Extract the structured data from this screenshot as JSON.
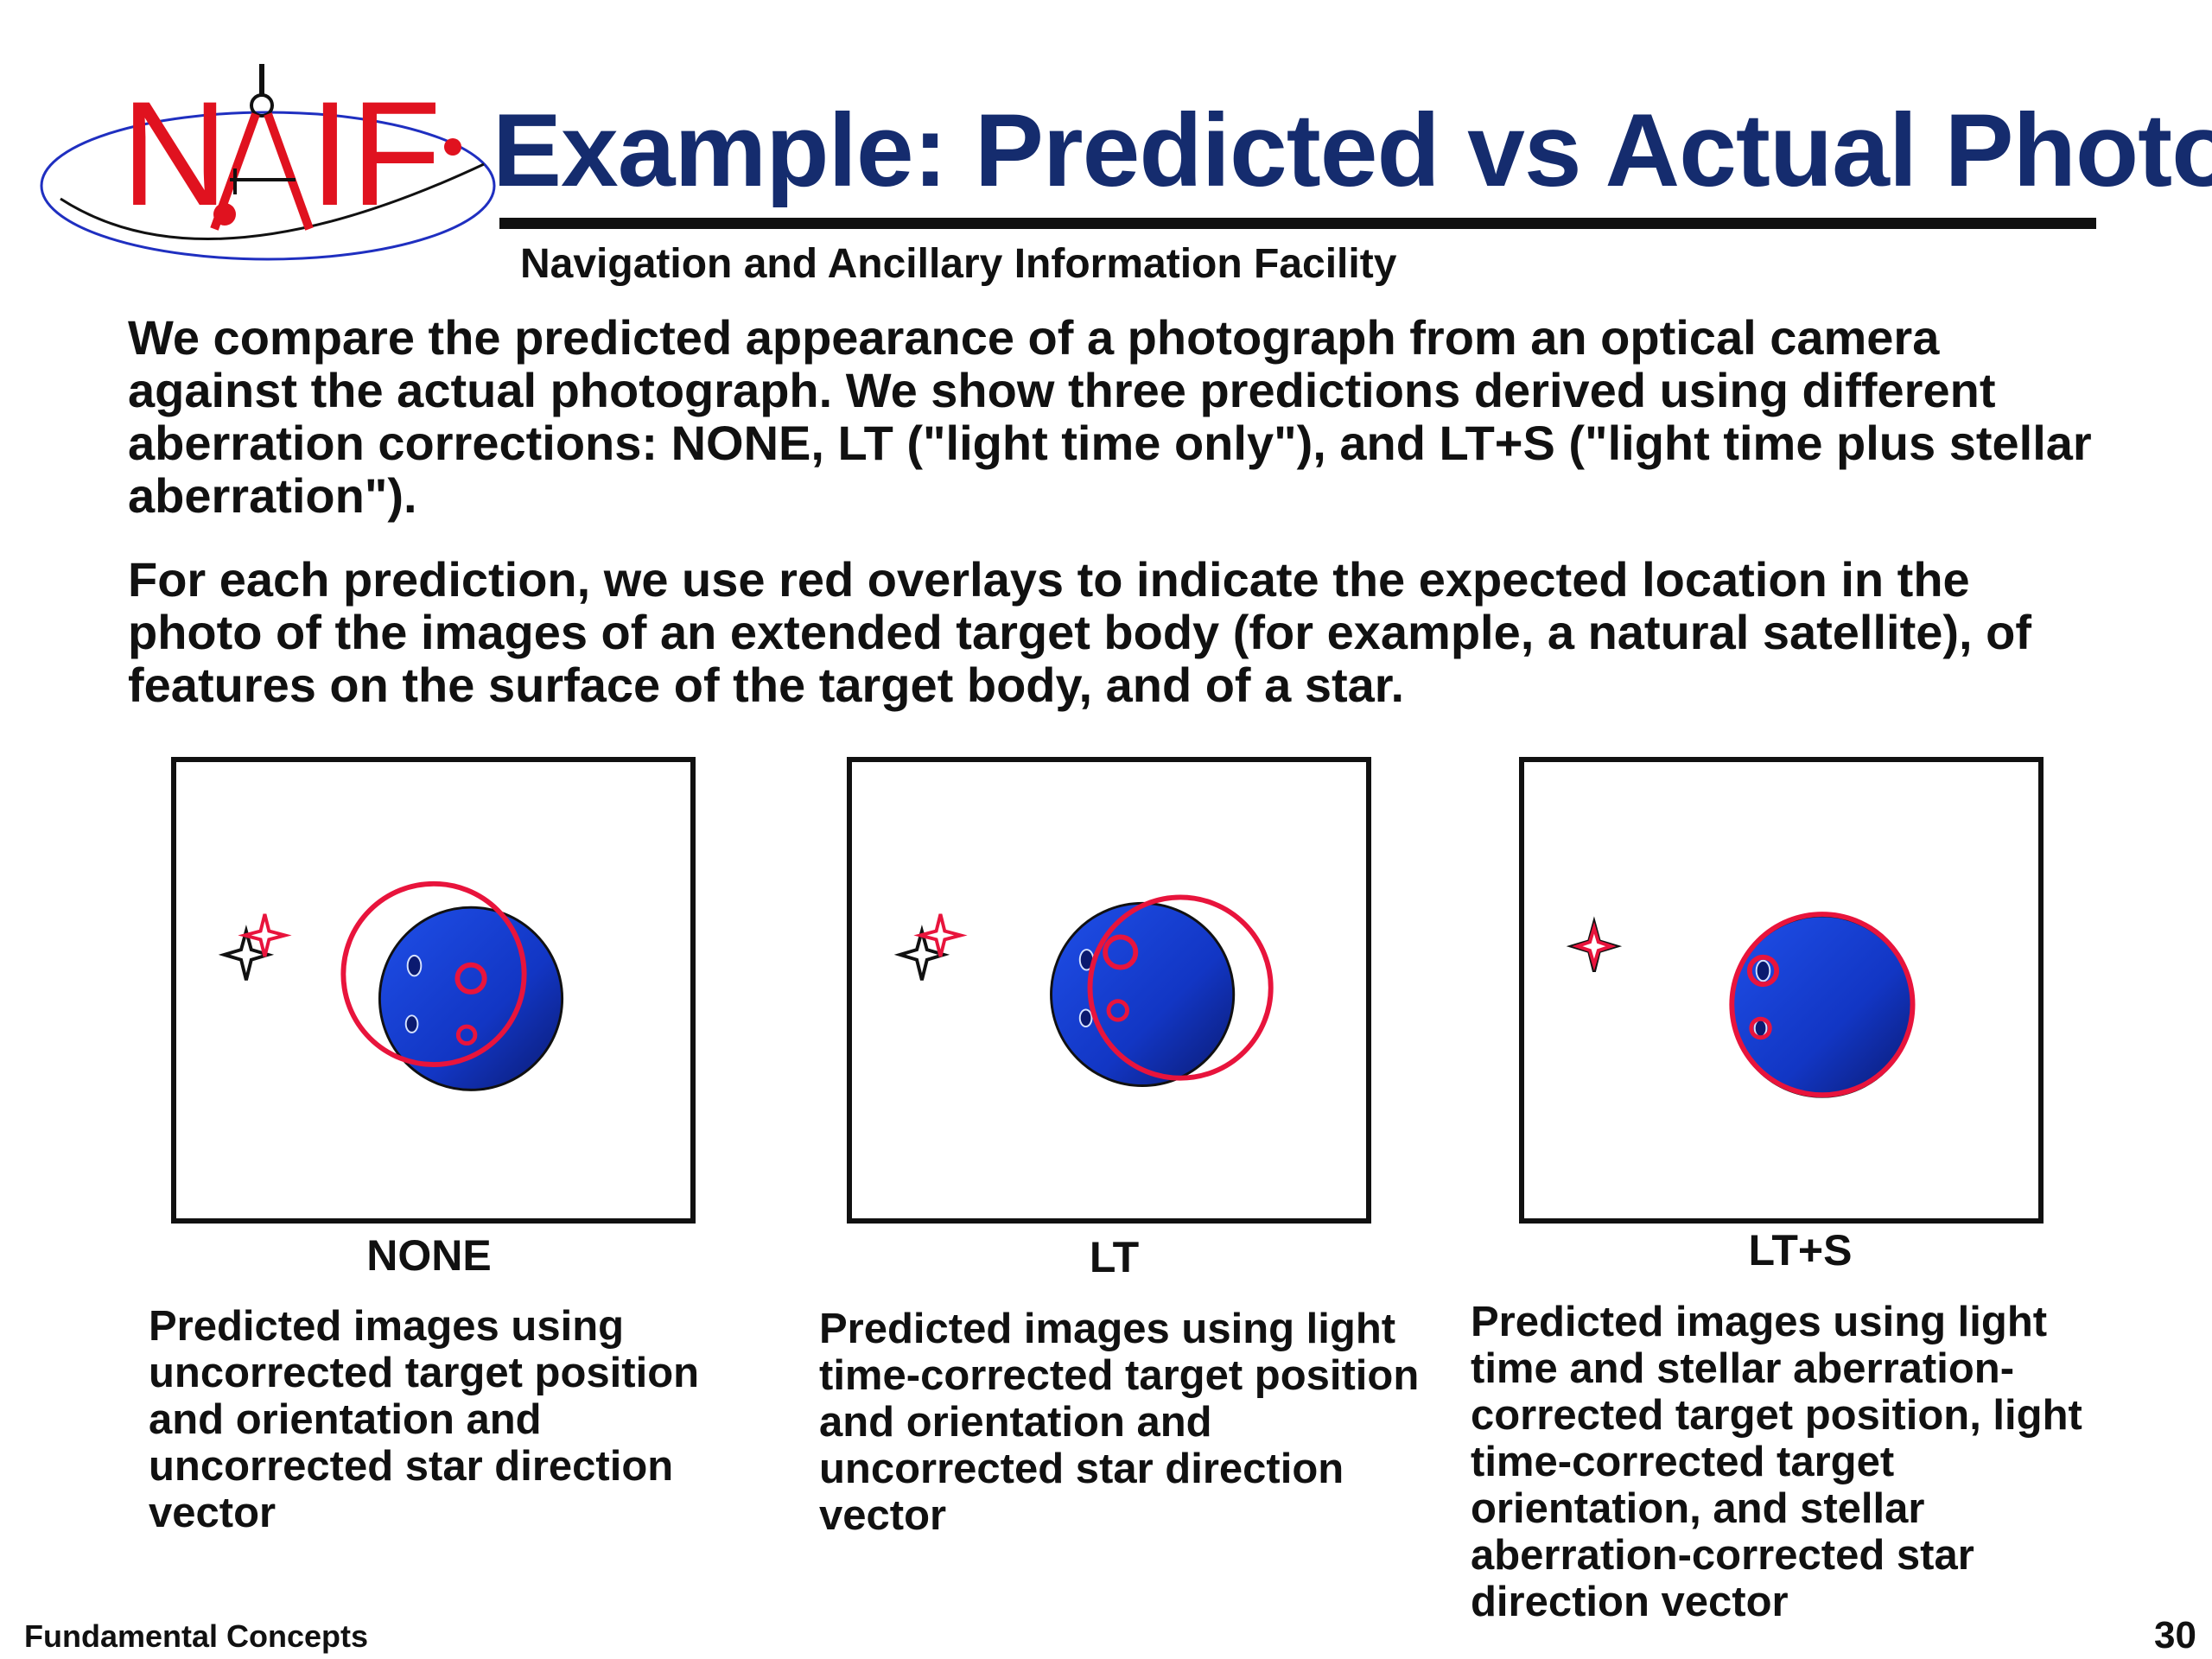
{
  "logo": {
    "text_left": "N",
    "text_right": "IF"
  },
  "header": {
    "title": "Example: Predicted vs Actual Photo",
    "subtitle": "Navigation and Ancillary Information Facility"
  },
  "body": {
    "paragraph1": "We compare the predicted appearance of a photograph from an optical camera against the actual photograph.  We show three predictions derived using different aberration corrections:  NONE, LT (\"light time only\"), and LT+S (\"light time plus stellar aberration\").",
    "paragraph2": "For each prediction, we use red overlays to indicate the expected location in the photo of the images of an extended target body (for example, a natural satellite), of features on the surface of the target body, and of a star."
  },
  "panels": [
    {
      "label": "NONE",
      "caption": "Predicted images using uncorrected target position and orientation and uncorrected star direction vector"
    },
    {
      "label": "LT",
      "caption": "Predicted images using light time-corrected target position and orientation and uncorrected star direction vector"
    },
    {
      "label": "LT+S",
      "caption": "Predicted images using light time and stellar aberration-corrected target position, light time-corrected target orientation, and stellar aberration-corrected star direction vector"
    }
  ],
  "footer": {
    "section": "Fundamental Concepts",
    "page": "30"
  },
  "colors": {
    "title_blue": "#152c6e",
    "logo_red": "#e0121f",
    "overlay_red": "#e8143c",
    "body_blue": "#1a44d6"
  }
}
